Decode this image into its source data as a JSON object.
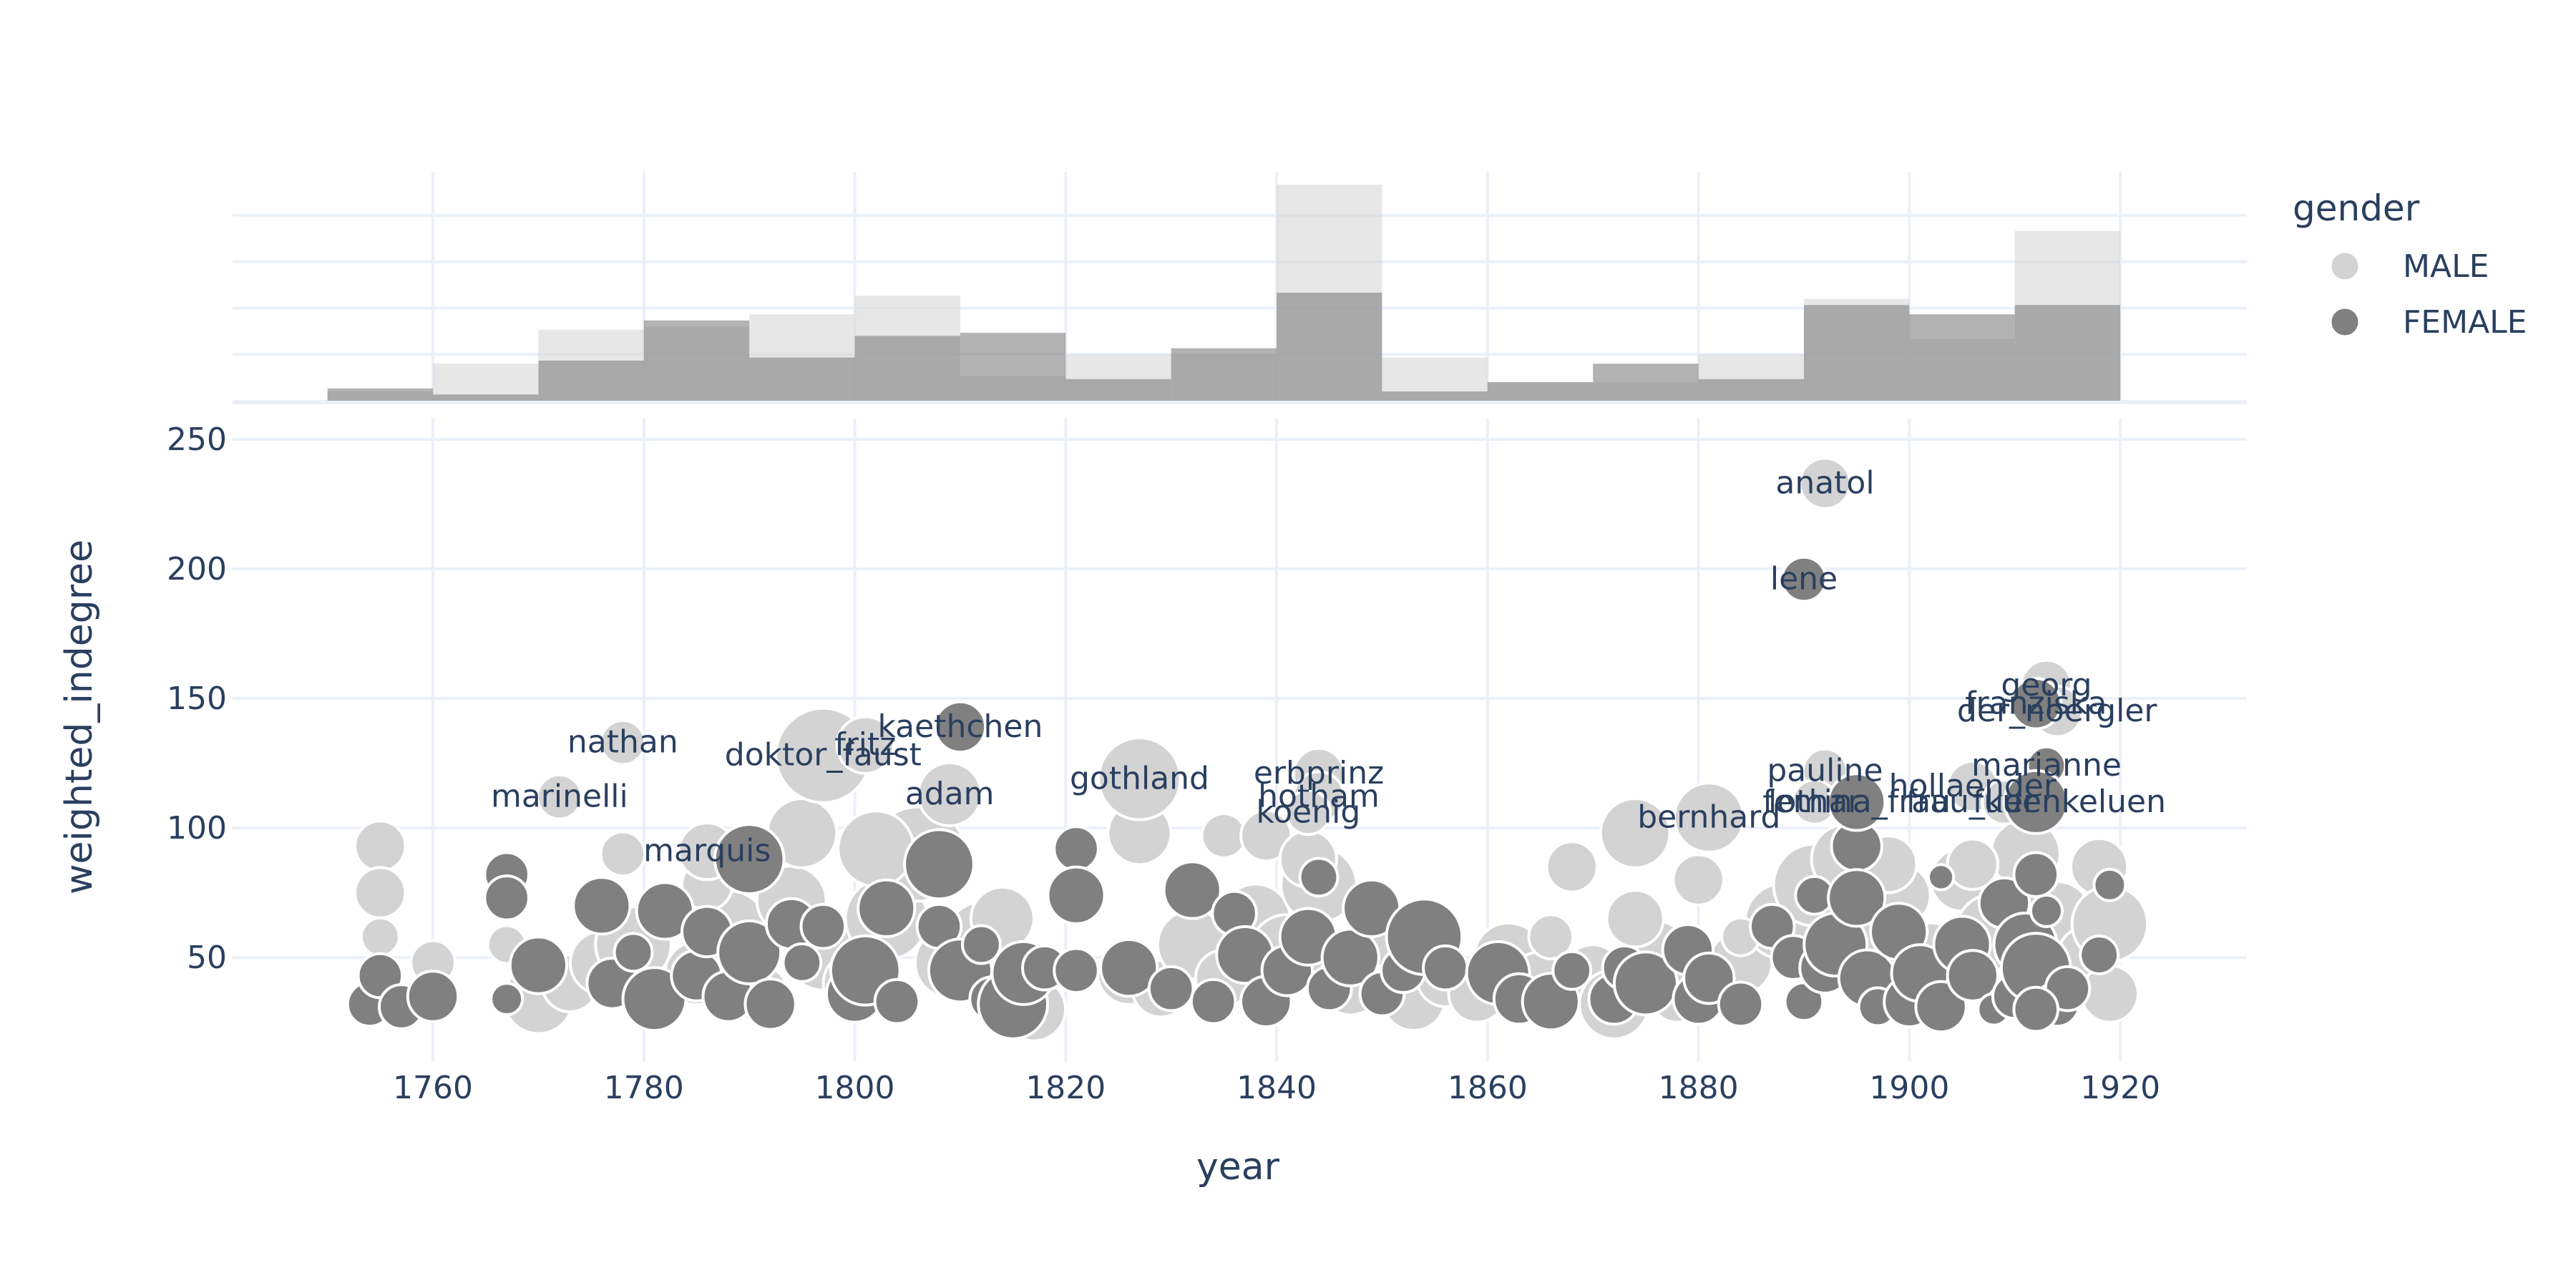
{
  "chart_data": {
    "type": "scatter",
    "xlabel": "year",
    "ylabel": "weighted_indegree",
    "xlim": [
      1741,
      1932
    ],
    "ylim": [
      10,
      258
    ],
    "x_ticks": [
      1760,
      1780,
      1800,
      1820,
      1840,
      1860,
      1880,
      1900,
      1920
    ],
    "y_ticks": [
      50,
      100,
      150,
      200,
      250
    ],
    "grid": true,
    "legend": {
      "title": "gender",
      "placement": "right",
      "entries": [
        {
          "name": "MALE",
          "color": "#d3d3d3"
        },
        {
          "name": "FEMALE",
          "color": "#808080"
        }
      ]
    },
    "marginal_histogram": {
      "position": "top",
      "bin_edges": [
        1750,
        1760,
        1770,
        1780,
        1790,
        1800,
        1810,
        1820,
        1830,
        1840,
        1850,
        1860,
        1870,
        1880,
        1890,
        1900,
        1910,
        1920
      ],
      "series": [
        {
          "name": "MALE",
          "color": "#d3d3d3",
          "counts": [
            3,
            12,
            23,
            24,
            28,
            34,
            8,
            15,
            15,
            70,
            14,
            6,
            6,
            15,
            33,
            20,
            55
          ]
        },
        {
          "name": "FEMALE",
          "color": "#808080",
          "counts": [
            4,
            2,
            13,
            26,
            14,
            21,
            22,
            7,
            17,
            35,
            3,
            6,
            12,
            7,
            31,
            28,
            31
          ]
        }
      ]
    },
    "series": [
      {
        "name": "MALE",
        "color": "#d3d3d3",
        "points": [
          {
            "x": 1770,
            "y": 34,
            "s": 22
          },
          {
            "x": 1773,
            "y": 40,
            "s": 18
          },
          {
            "x": 1776,
            "y": 48,
            "s": 20
          },
          {
            "x": 1779,
            "y": 55,
            "s": 24
          },
          {
            "x": 1782,
            "y": 36,
            "s": 16
          },
          {
            "x": 1785,
            "y": 44,
            "s": 20
          },
          {
            "x": 1788,
            "y": 60,
            "s": 26
          },
          {
            "x": 1791,
            "y": 36,
            "s": 18
          },
          {
            "x": 1794,
            "y": 72,
            "s": 22
          },
          {
            "x": 1797,
            "y": 52,
            "s": 24
          },
          {
            "x": 1800,
            "y": 40,
            "s": 20
          },
          {
            "x": 1803,
            "y": 65,
            "s": 26
          },
          {
            "x": 1806,
            "y": 90,
            "s": 30
          },
          {
            "x": 1809,
            "y": 48,
            "s": 22
          },
          {
            "x": 1812,
            "y": 58,
            "s": 22
          },
          {
            "x": 1815,
            "y": 36,
            "s": 18
          },
          {
            "x": 1817,
            "y": 30,
            "s": 20
          },
          {
            "x": 1826,
            "y": 44,
            "s": 20
          },
          {
            "x": 1829,
            "y": 38,
            "s": 18
          },
          {
            "x": 1832,
            "y": 55,
            "s": 22
          },
          {
            "x": 1835,
            "y": 42,
            "s": 18
          },
          {
            "x": 1838,
            "y": 65,
            "s": 22
          },
          {
            "x": 1841,
            "y": 52,
            "s": 24
          },
          {
            "x": 1844,
            "y": 78,
            "s": 24
          },
          {
            "x": 1847,
            "y": 40,
            "s": 20
          },
          {
            "x": 1850,
            "y": 60,
            "s": 22
          },
          {
            "x": 1853,
            "y": 34,
            "s": 20
          },
          {
            "x": 1856,
            "y": 42,
            "s": 18
          },
          {
            "x": 1859,
            "y": 36,
            "s": 18
          },
          {
            "x": 1862,
            "y": 50,
            "s": 22
          },
          {
            "x": 1865,
            "y": 40,
            "s": 20
          },
          {
            "x": 1870,
            "y": 44,
            "s": 18
          },
          {
            "x": 1872,
            "y": 32,
            "s": 22
          },
          {
            "x": 1876,
            "y": 52,
            "s": 20
          },
          {
            "x": 1878,
            "y": 36,
            "s": 18
          },
          {
            "x": 1884,
            "y": 48,
            "s": 20
          },
          {
            "x": 1888,
            "y": 64,
            "s": 24
          },
          {
            "x": 1891,
            "y": 78,
            "s": 26
          },
          {
            "x": 1894,
            "y": 88,
            "s": 22
          },
          {
            "x": 1897,
            "y": 58,
            "s": 22
          },
          {
            "x": 1899,
            "y": 74,
            "s": 20
          },
          {
            "x": 1902,
            "y": 50,
            "s": 22
          },
          {
            "x": 1905,
            "y": 80,
            "s": 20
          },
          {
            "x": 1908,
            "y": 60,
            "s": 24
          },
          {
            "x": 1911,
            "y": 90,
            "s": 22
          },
          {
            "x": 1914,
            "y": 66,
            "s": 22
          },
          {
            "x": 1917,
            "y": 50,
            "s": 20
          },
          {
            "x": 1919,
            "y": 36,
            "s": 18
          },
          {
            "x": 1755,
            "y": 93,
            "s": 16
          },
          {
            "x": 1755,
            "y": 75,
            "s": 16
          },
          {
            "x": 1755,
            "y": 58,
            "s": 12
          },
          {
            "x": 1760,
            "y": 48,
            "s": 14
          },
          {
            "x": 1767,
            "y": 55,
            "s": 12
          },
          {
            "x": 1778,
            "y": 90,
            "s": 14
          },
          {
            "x": 1786,
            "y": 78,
            "s": 16
          },
          {
            "x": 1795,
            "y": 98,
            "s": 22
          },
          {
            "x": 1802,
            "y": 92,
            "s": 24
          },
          {
            "x": 1814,
            "y": 65,
            "s": 20
          },
          {
            "x": 1827,
            "y": 98,
            "s": 20
          },
          {
            "x": 1835,
            "y": 97,
            "s": 14
          },
          {
            "x": 1839,
            "y": 97,
            "s": 16
          },
          {
            "x": 1843,
            "y": 88,
            "s": 18
          },
          {
            "x": 1868,
            "y": 85,
            "s": 16
          },
          {
            "x": 1874,
            "y": 98,
            "s": 22
          },
          {
            "x": 1874,
            "y": 65,
            "s": 18
          },
          {
            "x": 1880,
            "y": 80,
            "s": 16
          },
          {
            "x": 1898,
            "y": 86,
            "s": 18
          },
          {
            "x": 1906,
            "y": 86,
            "s": 16
          },
          {
            "x": 1918,
            "y": 85,
            "s": 18
          },
          {
            "x": 1919,
            "y": 63,
            "s": 24
          },
          {
            "x": 1884,
            "y": 58,
            "s": 12
          },
          {
            "x": 1866,
            "y": 58,
            "s": 14
          },
          {
            "x": 1892,
            "y": 233,
            "s": 16,
            "label": "anatol"
          },
          {
            "x": 1778,
            "y": 133,
            "s": 14,
            "label": "nathan"
          },
          {
            "x": 1772,
            "y": 112,
            "s": 14,
            "label": "marinelli"
          },
          {
            "x": 1797,
            "y": 128,
            "s": 30,
            "label": "doktor_faust"
          },
          {
            "x": 1801,
            "y": 132,
            "s": 18,
            "label": "fritz"
          },
          {
            "x": 1809,
            "y": 113,
            "s": 20,
            "label": "adam"
          },
          {
            "x": 1786,
            "y": 91,
            "s": 18,
            "label": "marquis"
          },
          {
            "x": 1827,
            "y": 119,
            "s": 26,
            "label": "gothland"
          },
          {
            "x": 1844,
            "y": 121,
            "s": 16,
            "label": "erbprinz"
          },
          {
            "x": 1844,
            "y": 112,
            "s": 16,
            "label": "hotham"
          },
          {
            "x": 1843,
            "y": 106,
            "s": 14,
            "label": "koenig"
          },
          {
            "x": 1881,
            "y": 104,
            "s": 22,
            "label": "bernhard"
          },
          {
            "x": 1892,
            "y": 122,
            "s": 14,
            "label": "pauline"
          },
          {
            "x": 1891,
            "y": 110,
            "s": 14,
            "label": "lothar"
          },
          {
            "x": 1913,
            "y": 155,
            "s": 16,
            "label": "georg"
          },
          {
            "x": 1914,
            "y": 145,
            "s": 16,
            "label": "der_noergler"
          },
          {
            "x": 1906,
            "y": 116,
            "s": 16,
            "label": "hollaender"
          },
          {
            "x": 1909,
            "y": 110,
            "s": 14,
            "label": "fuer"
          }
        ]
      },
      {
        "name": "FEMALE",
        "color": "#808080",
        "points": [
          {
            "x": 1754,
            "y": 32,
            "s": 14
          },
          {
            "x": 1755,
            "y": 43,
            "s": 14
          },
          {
            "x": 1757,
            "y": 31,
            "s": 14
          },
          {
            "x": 1760,
            "y": 35,
            "s": 16
          },
          {
            "x": 1767,
            "y": 34,
            "s": 10
          },
          {
            "x": 1767,
            "y": 82,
            "s": 14
          },
          {
            "x": 1767,
            "y": 73,
            "s": 14
          },
          {
            "x": 1770,
            "y": 47,
            "s": 18
          },
          {
            "x": 1776,
            "y": 70,
            "s": 18
          },
          {
            "x": 1777,
            "y": 40,
            "s": 16
          },
          {
            "x": 1779,
            "y": 52,
            "s": 12
          },
          {
            "x": 1781,
            "y": 34,
            "s": 20
          },
          {
            "x": 1782,
            "y": 68,
            "s": 18
          },
          {
            "x": 1785,
            "y": 43,
            "s": 16
          },
          {
            "x": 1786,
            "y": 60,
            "s": 16
          },
          {
            "x": 1788,
            "y": 35,
            "s": 16
          },
          {
            "x": 1790,
            "y": 88,
            "s": 22
          },
          {
            "x": 1790,
            "y": 52,
            "s": 20
          },
          {
            "x": 1792,
            "y": 32,
            "s": 16
          },
          {
            "x": 1794,
            "y": 63,
            "s": 16
          },
          {
            "x": 1795,
            "y": 48,
            "s": 12
          },
          {
            "x": 1797,
            "y": 62,
            "s": 14
          },
          {
            "x": 1800,
            "y": 36,
            "s": 18
          },
          {
            "x": 1801,
            "y": 45,
            "s": 22
          },
          {
            "x": 1803,
            "y": 69,
            "s": 18
          },
          {
            "x": 1804,
            "y": 33,
            "s": 14
          },
          {
            "x": 1808,
            "y": 86,
            "s": 22
          },
          {
            "x": 1808,
            "y": 62,
            "s": 14
          },
          {
            "x": 1810,
            "y": 45,
            "s": 20
          },
          {
            "x": 1812,
            "y": 55,
            "s": 12
          },
          {
            "x": 1813,
            "y": 34,
            "s": 14
          },
          {
            "x": 1815,
            "y": 32,
            "s": 22
          },
          {
            "x": 1816,
            "y": 44,
            "s": 20
          },
          {
            "x": 1818,
            "y": 46,
            "s": 14
          },
          {
            "x": 1821,
            "y": 92,
            "s": 14
          },
          {
            "x": 1821,
            "y": 74,
            "s": 18
          },
          {
            "x": 1821,
            "y": 45,
            "s": 14
          },
          {
            "x": 1826,
            "y": 46,
            "s": 18
          },
          {
            "x": 1830,
            "y": 38,
            "s": 14
          },
          {
            "x": 1832,
            "y": 76,
            "s": 18
          },
          {
            "x": 1834,
            "y": 33,
            "s": 14
          },
          {
            "x": 1836,
            "y": 67,
            "s": 14
          },
          {
            "x": 1837,
            "y": 51,
            "s": 18
          },
          {
            "x": 1839,
            "y": 33,
            "s": 16
          },
          {
            "x": 1841,
            "y": 45,
            "s": 16
          },
          {
            "x": 1843,
            "y": 58,
            "s": 18
          },
          {
            "x": 1844,
            "y": 81,
            "s": 12
          },
          {
            "x": 1845,
            "y": 38,
            "s": 14
          },
          {
            "x": 1847,
            "y": 50,
            "s": 18
          },
          {
            "x": 1849,
            "y": 69,
            "s": 18
          },
          {
            "x": 1850,
            "y": 36,
            "s": 14
          },
          {
            "x": 1852,
            "y": 45,
            "s": 14
          },
          {
            "x": 1854,
            "y": 58,
            "s": 24
          },
          {
            "x": 1856,
            "y": 46,
            "s": 14
          },
          {
            "x": 1861,
            "y": 44,
            "s": 20
          },
          {
            "x": 1863,
            "y": 34,
            "s": 16
          },
          {
            "x": 1866,
            "y": 33,
            "s": 18
          },
          {
            "x": 1868,
            "y": 45,
            "s": 12
          },
          {
            "x": 1872,
            "y": 34,
            "s": 16
          },
          {
            "x": 1873,
            "y": 46,
            "s": 14
          },
          {
            "x": 1875,
            "y": 40,
            "s": 20
          },
          {
            "x": 1879,
            "y": 53,
            "s": 16
          },
          {
            "x": 1880,
            "y": 34,
            "s": 16
          },
          {
            "x": 1881,
            "y": 42,
            "s": 16
          },
          {
            "x": 1884,
            "y": 32,
            "s": 14
          },
          {
            "x": 1887,
            "y": 62,
            "s": 14
          },
          {
            "x": 1889,
            "y": 50,
            "s": 14
          },
          {
            "x": 1890,
            "y": 33,
            "s": 12
          },
          {
            "x": 1891,
            "y": 74,
            "s": 12
          },
          {
            "x": 1892,
            "y": 46,
            "s": 16
          },
          {
            "x": 1893,
            "y": 55,
            "s": 20
          },
          {
            "x": 1895,
            "y": 93,
            "s": 16
          },
          {
            "x": 1895,
            "y": 73,
            "s": 18
          },
          {
            "x": 1896,
            "y": 42,
            "s": 18
          },
          {
            "x": 1897,
            "y": 31,
            "s": 12
          },
          {
            "x": 1899,
            "y": 60,
            "s": 18
          },
          {
            "x": 1900,
            "y": 33,
            "s": 16
          },
          {
            "x": 1901,
            "y": 44,
            "s": 18
          },
          {
            "x": 1903,
            "y": 81,
            "s": 8
          },
          {
            "x": 1903,
            "y": 31,
            "s": 16
          },
          {
            "x": 1905,
            "y": 55,
            "s": 18
          },
          {
            "x": 1906,
            "y": 43,
            "s": 16
          },
          {
            "x": 1908,
            "y": 30,
            "s": 10
          },
          {
            "x": 1909,
            "y": 71,
            "s": 16
          },
          {
            "x": 1910,
            "y": 35,
            "s": 14
          },
          {
            "x": 1911,
            "y": 55,
            "s": 20
          },
          {
            "x": 1912,
            "y": 46,
            "s": 22
          },
          {
            "x": 1912,
            "y": 82,
            "s": 14
          },
          {
            "x": 1913,
            "y": 68,
            "s": 10
          },
          {
            "x": 1914,
            "y": 32,
            "s": 14
          },
          {
            "x": 1915,
            "y": 38,
            "s": 14
          },
          {
            "x": 1918,
            "y": 51,
            "s": 12
          },
          {
            "x": 1919,
            "y": 78,
            "s": 10
          },
          {
            "x": 1912,
            "y": 30,
            "s": 14
          },
          {
            "x": 1890,
            "y": 196,
            "s": 14,
            "label": "lene"
          },
          {
            "x": 1810,
            "y": 139,
            "s": 16,
            "label": "kaethchen"
          },
          {
            "x": 1912,
            "y": 148,
            "s": 16,
            "label": "franziska"
          },
          {
            "x": 1913,
            "y": 124,
            "s": 12,
            "label": "marianne"
          },
          {
            "x": 1895,
            "y": 110,
            "s": 18,
            "label": "femina_frau"
          },
          {
            "x": 1912,
            "y": 110,
            "s": 20,
            "label": "frau_kuenkeluen"
          }
        ]
      }
    ]
  }
}
